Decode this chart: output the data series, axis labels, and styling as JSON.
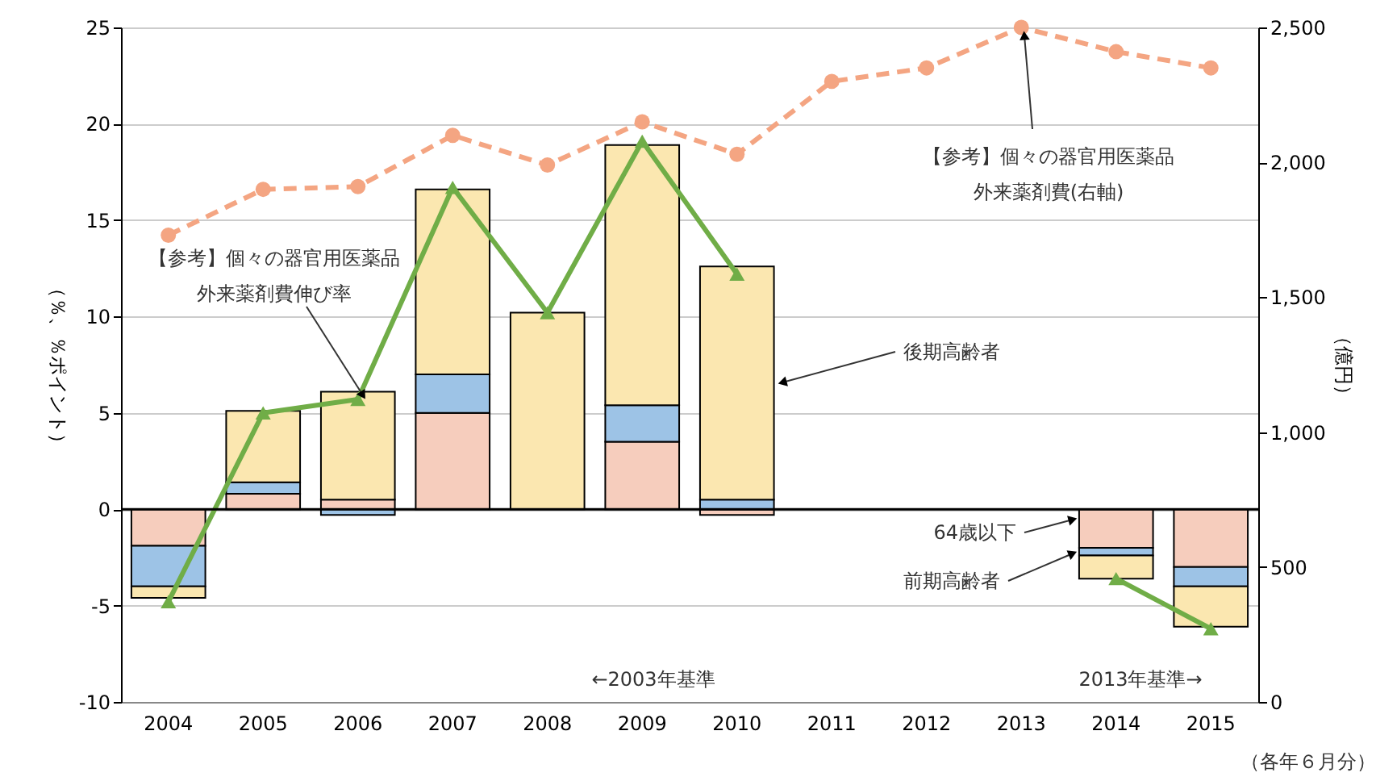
{
  "chart_data": {
    "type": "bar",
    "stacked": true,
    "categories": [
      "2004",
      "2005",
      "2006",
      "2007",
      "2008",
      "2009",
      "2010",
      "2011",
      "2012",
      "2013",
      "2014",
      "2015"
    ],
    "series": [
      {
        "name": "64歳以下",
        "color": "#f6cdbd",
        "values": [
          -1.9,
          0.8,
          0.5,
          5.0,
          null,
          3.5,
          -0.3,
          null,
          null,
          null,
          -2.0,
          -3.0
        ]
      },
      {
        "name": "前期高齢者",
        "color": "#9dc3e6",
        "values": [
          -2.1,
          0.6,
          -0.3,
          2.0,
          null,
          1.9,
          0.5,
          null,
          null,
          null,
          -0.4,
          -1.0
        ]
      },
      {
        "name": "後期高齢者",
        "color": "#fbe7b0",
        "values": [
          -0.6,
          3.7,
          5.6,
          9.6,
          10.2,
          13.5,
          12.1,
          null,
          null,
          null,
          -1.2,
          -2.1
        ]
      },
      {
        "name": "【参考】個々の器官用医薬品外来薬剤費伸び率",
        "type": "line",
        "color": "#70ad47",
        "marker": "triangle",
        "line_style": "solid",
        "values": [
          -4.8,
          5.0,
          5.7,
          16.7,
          10.2,
          19.1,
          12.2,
          null,
          null,
          null,
          -3.6,
          -6.2
        ]
      },
      {
        "name": "【参考】個々の器官用医薬品外来薬剤費(右軸)",
        "type": "line",
        "axis": "y2",
        "color": "#f4a582",
        "marker": "circle",
        "line_style": "dashed",
        "values": [
          1730,
          1900,
          1910,
          2100,
          1990,
          2150,
          2030,
          2300,
          2350,
          2500,
          2410,
          2350
        ]
      }
    ],
    "ylabel": "（％、％ポイント）",
    "y2label": "（億円）",
    "ylim": [
      -10,
      25
    ],
    "yticks": [
      -10,
      -5,
      0,
      5,
      10,
      15,
      20,
      25
    ],
    "y2lim": [
      0,
      2500
    ],
    "y2ticks": [
      0,
      500,
      {
        "value": 1000,
        "label": "1,000"
      },
      {
        "value": 1500,
        "label": "1,500"
      },
      {
        "value": 2000,
        "label": "2,000"
      },
      {
        "value": 2500,
        "label": "2,500"
      }
    ],
    "ref_lines": [
      {
        "axis": "y",
        "value": 0,
        "color": "#000000"
      }
    ],
    "grid": "y",
    "annotations": [
      "←2003年基準",
      "2013年基準→",
      "（各年６月分）"
    ]
  }
}
